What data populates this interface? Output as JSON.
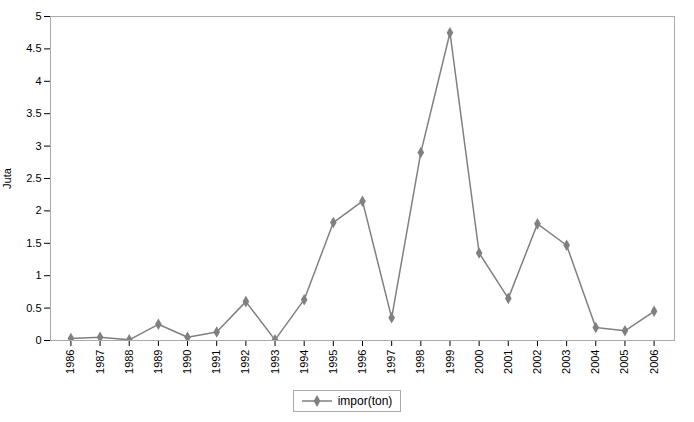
{
  "chart_data": {
    "type": "line",
    "x": [
      1986,
      1987,
      1988,
      1989,
      1990,
      1991,
      1992,
      1993,
      1994,
      1995,
      1996,
      1997,
      1998,
      1999,
      2000,
      2001,
      2002,
      2003,
      2004,
      2005,
      2006
    ],
    "series": [
      {
        "name": "impor(ton)",
        "color": "#808080",
        "marker": "diamond",
        "values": [
          0.03,
          0.05,
          0.01,
          0.25,
          0.05,
          0.13,
          0.6,
          0.01,
          0.63,
          1.82,
          2.15,
          0.35,
          2.9,
          4.75,
          1.35,
          0.65,
          1.8,
          1.47,
          0.2,
          0.15,
          0.45
        ]
      }
    ],
    "ylabel": "Juta",
    "xlim": [
      1985.3,
      2006.7
    ],
    "xticks": [
      1986,
      1987,
      1988,
      1989,
      1990,
      1991,
      1992,
      1993,
      1994,
      1995,
      1996,
      1997,
      1998,
      1999,
      2000,
      2001,
      2002,
      2003,
      2004,
      2005,
      2006
    ],
    "ylim": [
      0,
      5
    ],
    "yticks": [
      0,
      0.5,
      1,
      1.5,
      2,
      2.5,
      3,
      3.5,
      4,
      4.5,
      5
    ],
    "grid": false,
    "legend": "bottom"
  }
}
